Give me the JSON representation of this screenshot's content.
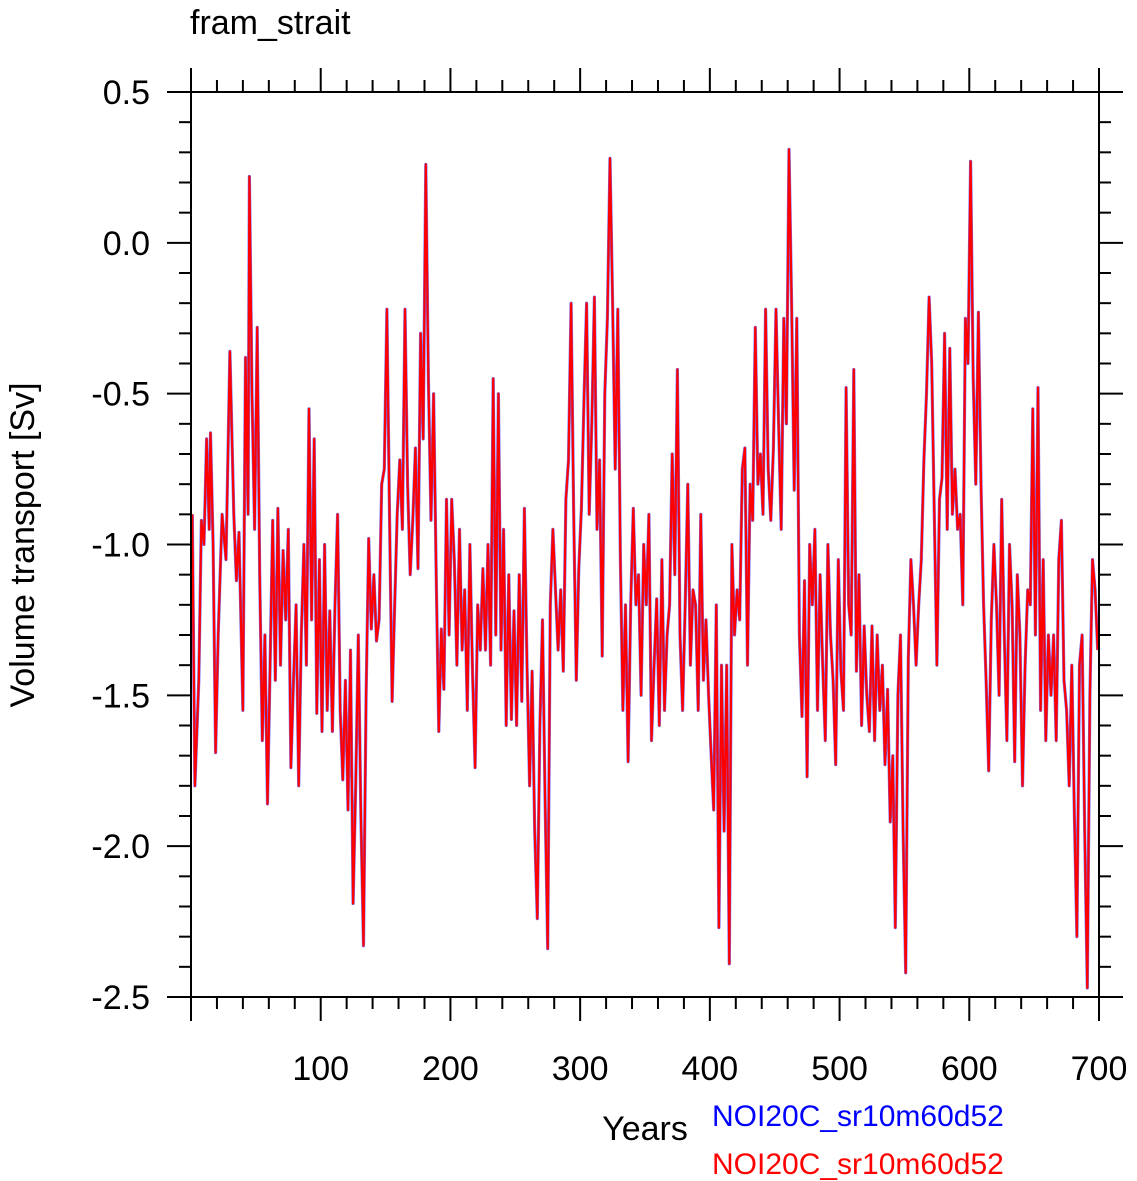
{
  "chart_data": {
    "type": "line",
    "title": "fram_strait",
    "xlabel": "Years",
    "ylabel": "Volume transport [Sv]",
    "xlim": [
      0,
      700
    ],
    "ylim": [
      -2.5,
      0.5
    ],
    "xticks": [
      100,
      200,
      300,
      400,
      500,
      600,
      700
    ],
    "xtick_labels": [
      "100",
      "200",
      "300",
      "400",
      "500",
      "600",
      "700"
    ],
    "yticks": [
      0.5,
      0.0,
      -0.5,
      -1.0,
      -1.5,
      -2.0,
      -2.5
    ],
    "ytick_labels": [
      "0.5",
      "0.0",
      "-0.5",
      "-1.0",
      "-1.5",
      "-2.0",
      "-2.5"
    ],
    "x_minor_step": 20,
    "y_minor_step": 0.1,
    "grid": false,
    "legend_placement": "bottom-right, below axes",
    "series": [
      {
        "name": "NOI20C_sr10m60d52",
        "color": "#0000ff"
      },
      {
        "name": "NOI20C_sr10m60d52",
        "color": "#ff0000"
      }
    ],
    "points": [
      [
        1,
        -0.9
      ],
      [
        3,
        -1.8
      ],
      [
        6,
        -1.45
      ],
      [
        8,
        -0.92
      ],
      [
        10,
        -1.0
      ],
      [
        12,
        -0.65
      ],
      [
        14,
        -0.95
      ],
      [
        15,
        -0.63
      ],
      [
        17,
        -1.0
      ],
      [
        19,
        -1.69
      ],
      [
        21,
        -1.3
      ],
      [
        24,
        -0.9
      ],
      [
        27,
        -1.05
      ],
      [
        30,
        -0.36
      ],
      [
        33,
        -0.9
      ],
      [
        35,
        -1.12
      ],
      [
        37,
        -0.96
      ],
      [
        40,
        -1.55
      ],
      [
        42,
        -0.38
      ],
      [
        44,
        -0.9
      ],
      [
        45,
        0.22
      ],
      [
        47,
        -0.5
      ],
      [
        49,
        -0.95
      ],
      [
        51,
        -0.28
      ],
      [
        53,
        -1.1
      ],
      [
        55,
        -1.65
      ],
      [
        57,
        -1.3
      ],
      [
        59,
        -1.86
      ],
      [
        61,
        -1.4
      ],
      [
        63,
        -0.92
      ],
      [
        65,
        -1.45
      ],
      [
        67,
        -0.88
      ],
      [
        69,
        -1.4
      ],
      [
        71,
        -1.02
      ],
      [
        73,
        -1.25
      ],
      [
        75,
        -0.95
      ],
      [
        77,
        -1.74
      ],
      [
        79,
        -1.45
      ],
      [
        81,
        -1.2
      ],
      [
        83,
        -1.8
      ],
      [
        85,
        -1.3
      ],
      [
        87,
        -1.0
      ],
      [
        89,
        -1.4
      ],
      [
        91,
        -0.55
      ],
      [
        93,
        -1.25
      ],
      [
        95,
        -0.65
      ],
      [
        97,
        -1.56
      ],
      [
        99,
        -1.05
      ],
      [
        101,
        -1.62
      ],
      [
        103,
        -1.0
      ],
      [
        105,
        -1.55
      ],
      [
        107,
        -1.22
      ],
      [
        109,
        -1.62
      ],
      [
        111,
        -1.2
      ],
      [
        113,
        -0.9
      ],
      [
        115,
        -1.55
      ],
      [
        117,
        -1.78
      ],
      [
        119,
        -1.45
      ],
      [
        121,
        -1.88
      ],
      [
        123,
        -1.35
      ],
      [
        125,
        -2.19
      ],
      [
        127,
        -1.8
      ],
      [
        129,
        -1.3
      ],
      [
        131,
        -1.9
      ],
      [
        133,
        -2.33
      ],
      [
        135,
        -1.5
      ],
      [
        137,
        -0.98
      ],
      [
        139,
        -1.28
      ],
      [
        141,
        -1.1
      ],
      [
        143,
        -1.32
      ],
      [
        145,
        -1.25
      ],
      [
        147,
        -0.8
      ],
      [
        149,
        -0.75
      ],
      [
        151,
        -0.22
      ],
      [
        153,
        -0.9
      ],
      [
        155,
        -1.52
      ],
      [
        157,
        -1.2
      ],
      [
        159,
        -0.9
      ],
      [
        161,
        -0.72
      ],
      [
        163,
        -0.95
      ],
      [
        165,
        -0.22
      ],
      [
        167,
        -0.8
      ],
      [
        169,
        -1.1
      ],
      [
        171,
        -0.92
      ],
      [
        173,
        -0.68
      ],
      [
        175,
        -1.08
      ],
      [
        177,
        -0.3
      ],
      [
        179,
        -0.65
      ],
      [
        181,
        0.26
      ],
      [
        183,
        -0.45
      ],
      [
        185,
        -0.92
      ],
      [
        187,
        -0.5
      ],
      [
        189,
        -1.1
      ],
      [
        191,
        -1.62
      ],
      [
        193,
        -1.28
      ],
      [
        195,
        -1.48
      ],
      [
        197,
        -0.85
      ],
      [
        199,
        -1.3
      ],
      [
        201,
        -0.85
      ],
      [
        203,
        -1.05
      ],
      [
        205,
        -1.4
      ],
      [
        207,
        -0.95
      ],
      [
        209,
        -1.35
      ],
      [
        211,
        -1.15
      ],
      [
        213,
        -1.55
      ],
      [
        215,
        -1.0
      ],
      [
        217,
        -1.42
      ],
      [
        219,
        -1.74
      ],
      [
        221,
        -1.2
      ],
      [
        223,
        -1.35
      ],
      [
        225,
        -1.08
      ],
      [
        227,
        -1.35
      ],
      [
        229,
        -1.0
      ],
      [
        231,
        -1.4
      ],
      [
        233,
        -0.45
      ],
      [
        235,
        -1.3
      ],
      [
        237,
        -0.5
      ],
      [
        239,
        -1.35
      ],
      [
        241,
        -0.95
      ],
      [
        243,
        -1.6
      ],
      [
        245,
        -1.1
      ],
      [
        247,
        -1.58
      ],
      [
        249,
        -1.22
      ],
      [
        251,
        -1.6
      ],
      [
        253,
        -1.1
      ],
      [
        255,
        -1.52
      ],
      [
        257,
        -0.88
      ],
      [
        259,
        -1.4
      ],
      [
        261,
        -1.8
      ],
      [
        263,
        -1.42
      ],
      [
        265,
        -1.95
      ],
      [
        267,
        -2.24
      ],
      [
        269,
        -1.6
      ],
      [
        271,
        -1.25
      ],
      [
        273,
        -1.85
      ],
      [
        275,
        -2.34
      ],
      [
        277,
        -1.2
      ],
      [
        279,
        -0.95
      ],
      [
        281,
        -1.15
      ],
      [
        283,
        -1.35
      ],
      [
        285,
        -1.15
      ],
      [
        287,
        -1.42
      ],
      [
        289,
        -0.85
      ],
      [
        291,
        -0.72
      ],
      [
        293,
        -0.2
      ],
      [
        295,
        -0.9
      ],
      [
        297,
        -1.45
      ],
      [
        299,
        -1.08
      ],
      [
        301,
        -0.88
      ],
      [
        303,
        -0.52
      ],
      [
        305,
        -0.2
      ],
      [
        307,
        -0.9
      ],
      [
        309,
        -0.6
      ],
      [
        311,
        -0.18
      ],
      [
        313,
        -0.95
      ],
      [
        315,
        -0.72
      ],
      [
        317,
        -1.37
      ],
      [
        319,
        -0.5
      ],
      [
        321,
        -0.25
      ],
      [
        323,
        0.28
      ],
      [
        325,
        -0.2
      ],
      [
        327,
        -0.75
      ],
      [
        329,
        -0.22
      ],
      [
        331,
        -1.05
      ],
      [
        333,
        -1.55
      ],
      [
        335,
        -1.2
      ],
      [
        337,
        -1.72
      ],
      [
        339,
        -1.2
      ],
      [
        341,
        -0.88
      ],
      [
        343,
        -1.2
      ],
      [
        345,
        -1.1
      ],
      [
        347,
        -1.5
      ],
      [
        349,
        -1.0
      ],
      [
        351,
        -1.2
      ],
      [
        353,
        -0.9
      ],
      [
        355,
        -1.65
      ],
      [
        357,
        -1.4
      ],
      [
        359,
        -1.18
      ],
      [
        361,
        -1.6
      ],
      [
        363,
        -1.05
      ],
      [
        365,
        -1.55
      ],
      [
        367,
        -1.3
      ],
      [
        369,
        -1.2
      ],
      [
        371,
        -0.7
      ],
      [
        373,
        -1.1
      ],
      [
        375,
        -0.42
      ],
      [
        377,
        -1.3
      ],
      [
        379,
        -1.55
      ],
      [
        381,
        -1.2
      ],
      [
        383,
        -0.8
      ],
      [
        385,
        -1.4
      ],
      [
        387,
        -1.15
      ],
      [
        389,
        -1.2
      ],
      [
        391,
        -1.55
      ],
      [
        393,
        -0.9
      ],
      [
        395,
        -1.45
      ],
      [
        397,
        -1.25
      ],
      [
        399,
        -1.5
      ],
      [
        401,
        -1.7
      ],
      [
        403,
        -1.88
      ],
      [
        405,
        -1.2
      ],
      [
        407,
        -2.27
      ],
      [
        409,
        -1.4
      ],
      [
        411,
        -1.95
      ],
      [
        413,
        -1.4
      ],
      [
        415,
        -2.39
      ],
      [
        417,
        -1.0
      ],
      [
        419,
        -1.3
      ],
      [
        421,
        -1.15
      ],
      [
        423,
        -1.25
      ],
      [
        425,
        -0.75
      ],
      [
        427,
        -0.68
      ],
      [
        429,
        -1.4
      ],
      [
        431,
        -0.8
      ],
      [
        433,
        -0.92
      ],
      [
        435,
        -0.28
      ],
      [
        437,
        -0.8
      ],
      [
        439,
        -0.7
      ],
      [
        441,
        -0.9
      ],
      [
        443,
        -0.22
      ],
      [
        445,
        -0.75
      ],
      [
        447,
        -0.92
      ],
      [
        449,
        -0.68
      ],
      [
        451,
        -0.22
      ],
      [
        453,
        -0.6
      ],
      [
        455,
        -0.95
      ],
      [
        457,
        -0.25
      ],
      [
        459,
        -0.6
      ],
      [
        461,
        0.31
      ],
      [
        463,
        -0.2
      ],
      [
        465,
        -0.82
      ],
      [
        467,
        -0.25
      ],
      [
        469,
        -1.3
      ],
      [
        471,
        -1.57
      ],
      [
        473,
        -1.12
      ],
      [
        475,
        -1.77
      ],
      [
        477,
        -1.0
      ],
      [
        479,
        -1.2
      ],
      [
        481,
        -0.95
      ],
      [
        483,
        -1.55
      ],
      [
        485,
        -1.1
      ],
      [
        487,
        -1.4
      ],
      [
        489,
        -1.65
      ],
      [
        491,
        -1.0
      ],
      [
        493,
        -1.3
      ],
      [
        495,
        -1.45
      ],
      [
        497,
        -1.73
      ],
      [
        499,
        -1.05
      ],
      [
        501,
        -1.42
      ],
      [
        503,
        -1.55
      ],
      [
        505,
        -0.48
      ],
      [
        507,
        -1.2
      ],
      [
        509,
        -1.3
      ],
      [
        511,
        -0.42
      ],
      [
        513,
        -1.42
      ],
      [
        515,
        -1.1
      ],
      [
        517,
        -1.6
      ],
      [
        519,
        -1.27
      ],
      [
        521,
        -1.5
      ],
      [
        523,
        -1.62
      ],
      [
        525,
        -1.27
      ],
      [
        527,
        -1.65
      ],
      [
        529,
        -1.3
      ],
      [
        531,
        -1.55
      ],
      [
        533,
        -1.4
      ],
      [
        535,
        -1.73
      ],
      [
        537,
        -1.48
      ],
      [
        539,
        -1.92
      ],
      [
        541,
        -1.7
      ],
      [
        543,
        -2.27
      ],
      [
        545,
        -1.5
      ],
      [
        547,
        -1.3
      ],
      [
        549,
        -1.95
      ],
      [
        551,
        -2.42
      ],
      [
        553,
        -1.38
      ],
      [
        555,
        -1.05
      ],
      [
        557,
        -1.2
      ],
      [
        559,
        -1.4
      ],
      [
        561,
        -1.2
      ],
      [
        563,
        -1.05
      ],
      [
        565,
        -0.72
      ],
      [
        567,
        -0.5
      ],
      [
        569,
        -0.18
      ],
      [
        571,
        -0.4
      ],
      [
        573,
        -0.9
      ],
      [
        575,
        -1.4
      ],
      [
        577,
        -0.85
      ],
      [
        579,
        -0.78
      ],
      [
        581,
        -0.3
      ],
      [
        583,
        -0.95
      ],
      [
        585,
        -0.35
      ],
      [
        587,
        -0.9
      ],
      [
        589,
        -0.75
      ],
      [
        591,
        -0.95
      ],
      [
        593,
        -0.9
      ],
      [
        595,
        -1.2
      ],
      [
        597,
        -0.25
      ],
      [
        599,
        -0.4
      ],
      [
        601,
        0.27
      ],
      [
        603,
        -0.45
      ],
      [
        605,
        -0.8
      ],
      [
        607,
        -0.23
      ],
      [
        609,
        -0.8
      ],
      [
        611,
        -1.2
      ],
      [
        613,
        -1.45
      ],
      [
        615,
        -1.75
      ],
      [
        617,
        -1.25
      ],
      [
        619,
        -1.0
      ],
      [
        621,
        -1.2
      ],
      [
        623,
        -1.5
      ],
      [
        625,
        -0.85
      ],
      [
        627,
        -1.3
      ],
      [
        629,
        -1.65
      ],
      [
        631,
        -1.0
      ],
      [
        633,
        -1.2
      ],
      [
        635,
        -1.72
      ],
      [
        637,
        -1.1
      ],
      [
        639,
        -1.3
      ],
      [
        641,
        -1.8
      ],
      [
        643,
        -1.4
      ],
      [
        645,
        -1.15
      ],
      [
        647,
        -1.2
      ],
      [
        649,
        -0.55
      ],
      [
        651,
        -1.3
      ],
      [
        653,
        -0.48
      ],
      [
        655,
        -1.55
      ],
      [
        657,
        -1.05
      ],
      [
        659,
        -1.65
      ],
      [
        661,
        -1.3
      ],
      [
        663,
        -1.5
      ],
      [
        665,
        -1.3
      ],
      [
        667,
        -1.65
      ],
      [
        669,
        -1.05
      ],
      [
        671,
        -0.92
      ],
      [
        673,
        -1.45
      ],
      [
        675,
        -1.55
      ],
      [
        677,
        -1.8
      ],
      [
        679,
        -1.4
      ],
      [
        681,
        -1.9
      ],
      [
        683,
        -2.3
      ],
      [
        685,
        -1.4
      ],
      [
        687,
        -1.3
      ],
      [
        689,
        -1.95
      ],
      [
        691,
        -2.47
      ],
      [
        693,
        -1.5
      ],
      [
        695,
        -1.05
      ],
      [
        697,
        -1.15
      ],
      [
        699,
        -1.35
      ]
    ]
  }
}
